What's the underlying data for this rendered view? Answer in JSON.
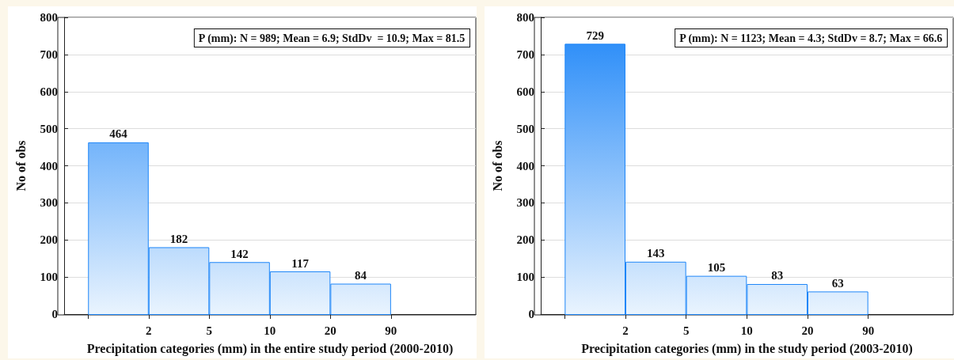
{
  "chart_data": [
    {
      "type": "bar",
      "xlabel": "Precipitation categories (mm) in the entire study period (2000-2010)",
      "ylabel": "No of obs",
      "categories": [
        "2",
        "5",
        "10",
        "20",
        "90"
      ],
      "values": [
        464,
        182,
        142,
        117,
        84
      ],
      "color": "#1e86f8",
      "data_labels": true,
      "ylim": [
        0,
        800
      ],
      "yticks": [
        0,
        100,
        200,
        300,
        400,
        500,
        600,
        700,
        800
      ],
      "grid": "y",
      "annotations": [
        "P (mm): N = 989; Mean = 6.9; StdDv  = 10.9; Max = 81.5"
      ]
    },
    {
      "type": "bar",
      "xlabel": "Precipitation categories (mm) in the study period (2003-2010)",
      "ylabel": "No of obs",
      "categories": [
        "2",
        "5",
        "10",
        "20",
        "90"
      ],
      "values": [
        729,
        143,
        105,
        83,
        63
      ],
      "color": "#1e86f8",
      "data_labels": true,
      "ylim": [
        0,
        800
      ],
      "yticks": [
        0,
        100,
        200,
        300,
        400,
        500,
        600,
        700,
        800
      ],
      "grid": "y",
      "annotations": [
        "P (mm): N = 1123; Mean = 4.3; StdDv = 8.7; Max = 66.6"
      ]
    }
  ]
}
